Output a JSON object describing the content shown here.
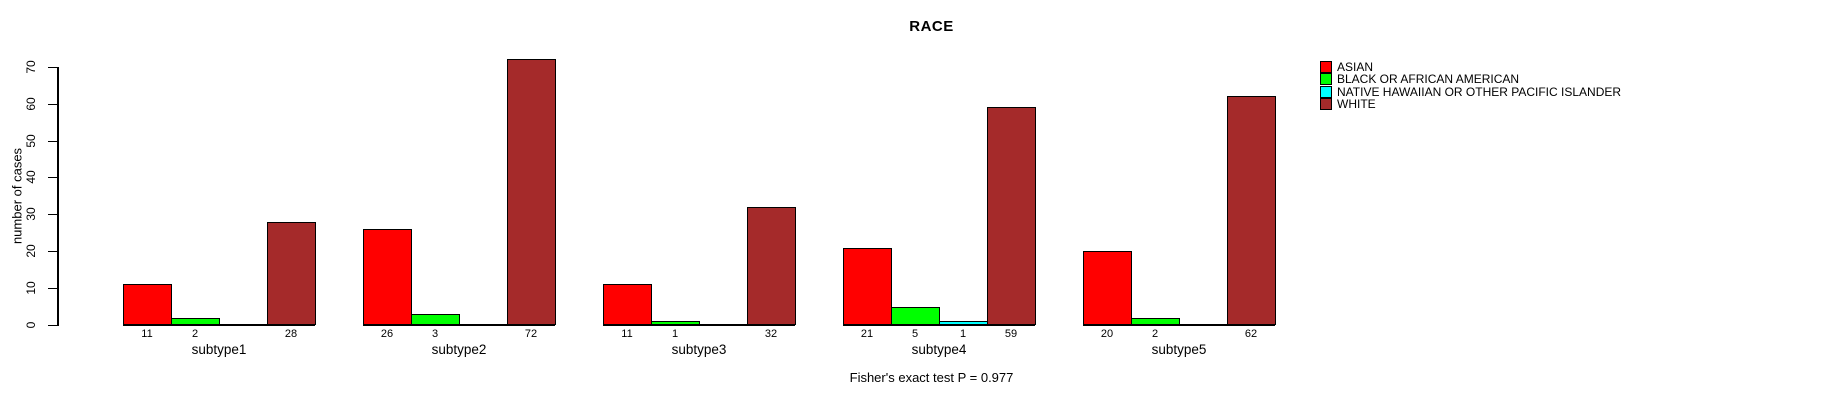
{
  "chart_data": {
    "type": "bar",
    "title": "RACE",
    "ylabel": "number of cases",
    "footer": "Fisher's exact test P = 0.977",
    "categories": [
      "subtype1",
      "subtype2",
      "subtype3",
      "subtype4",
      "subtype5"
    ],
    "series": [
      {
        "name": "ASIAN",
        "color": "#FF0000",
        "values": [
          11,
          26,
          11,
          21,
          20
        ]
      },
      {
        "name": "BLACK OR AFRICAN AMERICAN",
        "color": "#00FF00",
        "values": [
          2,
          3,
          1,
          5,
          2
        ]
      },
      {
        "name": "NATIVE HAWAIIAN OR OTHER PACIFIC ISLANDER",
        "color": "#00FFFF",
        "values": [
          0,
          0,
          0,
          1,
          0
        ]
      },
      {
        "name": "WHITE",
        "color": "#A52A2A",
        "values": [
          28,
          72,
          32,
          59,
          62
        ]
      }
    ],
    "ylim": [
      0,
      70
    ],
    "yticks": [
      0,
      10,
      20,
      30,
      40,
      50,
      60,
      70
    ],
    "grid": false,
    "legend_position": "top-right",
    "bar_border_color": "#000000",
    "background_color": "#FFFFFF",
    "value_labels_under_bars": true,
    "zero_values_unlabeled": true
  }
}
